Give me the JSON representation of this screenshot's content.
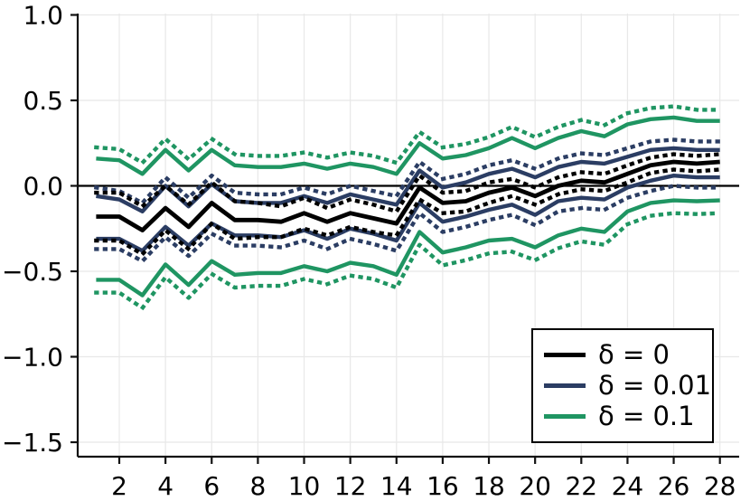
{
  "chart_data": {
    "type": "line",
    "title": "",
    "xlabel": "",
    "ylabel": "",
    "grid": true,
    "xlim": [
      0.2,
      28.8
    ],
    "ylim": [
      -1.59,
      1.01
    ],
    "zero_line": 0.0,
    "x": [
      1,
      2,
      3,
      4,
      5,
      6,
      7,
      8,
      9,
      10,
      11,
      12,
      13,
      14,
      15,
      16,
      17,
      18,
      19,
      20,
      21,
      22,
      23,
      24,
      25,
      26,
      27,
      28
    ],
    "xticks": {
      "values": [
        2,
        4,
        6,
        8,
        10,
        12,
        14,
        16,
        18,
        20,
        22,
        24,
        26,
        28
      ],
      "labels": [
        "2",
        "4",
        "6",
        "8",
        "10",
        "12",
        "14",
        "16",
        "18",
        "20",
        "22",
        "24",
        "26",
        "28"
      ]
    },
    "yticks": {
      "values": [
        1.0,
        0.5,
        0.0,
        -0.5,
        -1.0,
        -1.5
      ],
      "labels": [
        "1.0",
        "0.5",
        "0.0",
        "−0.5",
        "−1.0",
        "−1.5"
      ]
    },
    "colors": {
      "black": "#000000",
      "navy": "#2b3d63",
      "green": "#1f9562",
      "grid": "#e8e8e8",
      "spine": "#111111"
    },
    "legend": {
      "position": "bottom-right",
      "entries": [
        {
          "label": "δ = 0",
          "color": "#000000"
        },
        {
          "label": "δ = 0.01",
          "color": "#2b3d63"
        },
        {
          "label": "δ = 0.1",
          "color": "#1f9562"
        }
      ]
    },
    "series": [
      {
        "name": "delta-0.1-upper-ci-dotted",
        "color": "#1f9562",
        "style": "dotted",
        "width": 4.4,
        "values": [
          0.225,
          0.215,
          0.135,
          0.275,
          0.155,
          0.275,
          0.185,
          0.175,
          0.175,
          0.195,
          0.165,
          0.195,
          0.175,
          0.135,
          0.315,
          0.225,
          0.245,
          0.285,
          0.345,
          0.285,
          0.345,
          0.385,
          0.355,
          0.425,
          0.455,
          0.465,
          0.445,
          0.445
        ]
      },
      {
        "name": "delta-0.1-lower-ci-dotted",
        "color": "#1f9562",
        "style": "dotted",
        "width": 4.4,
        "values": [
          -0.625,
          -0.625,
          -0.715,
          -0.535,
          -0.655,
          -0.515,
          -0.595,
          -0.585,
          -0.585,
          -0.545,
          -0.575,
          -0.525,
          -0.545,
          -0.595,
          -0.345,
          -0.465,
          -0.435,
          -0.395,
          -0.385,
          -0.435,
          -0.365,
          -0.325,
          -0.345,
          -0.225,
          -0.175,
          -0.16,
          -0.165,
          -0.16
        ]
      },
      {
        "name": "delta-0.1-upper-bound",
        "color": "#1f9562",
        "style": "solid",
        "width": 4.4,
        "values": [
          0.16,
          0.15,
          0.07,
          0.21,
          0.09,
          0.21,
          0.12,
          0.11,
          0.11,
          0.13,
          0.1,
          0.13,
          0.11,
          0.07,
          0.25,
          0.16,
          0.18,
          0.22,
          0.28,
          0.22,
          0.28,
          0.32,
          0.29,
          0.36,
          0.39,
          0.4,
          0.38,
          0.38
        ]
      },
      {
        "name": "delta-0.1-lower-bound",
        "color": "#1f9562",
        "style": "solid",
        "width": 4.4,
        "values": [
          -0.55,
          -0.55,
          -0.64,
          -0.46,
          -0.58,
          -0.44,
          -0.52,
          -0.51,
          -0.51,
          -0.47,
          -0.5,
          -0.45,
          -0.47,
          -0.52,
          -0.27,
          -0.39,
          -0.36,
          -0.32,
          -0.31,
          -0.36,
          -0.29,
          -0.25,
          -0.27,
          -0.15,
          -0.1,
          -0.085,
          -0.09,
          -0.085
        ]
      },
      {
        "name": "delta-0.01-upper-ci-dotted",
        "color": "#2b3d63",
        "style": "dotted",
        "width": 4.4,
        "values": [
          -0.01,
          -0.03,
          -0.1,
          0.05,
          -0.07,
          0.06,
          -0.04,
          -0.05,
          -0.05,
          -0.01,
          -0.05,
          0.0,
          -0.03,
          -0.06,
          0.14,
          0.04,
          0.07,
          0.12,
          0.15,
          0.1,
          0.16,
          0.19,
          0.18,
          0.22,
          0.26,
          0.27,
          0.26,
          0.26
        ]
      },
      {
        "name": "delta-0.01-lower-ci-dotted",
        "color": "#2b3d63",
        "style": "dotted",
        "width": 4.4,
        "values": [
          -0.37,
          -0.37,
          -0.44,
          -0.3,
          -0.41,
          -0.28,
          -0.35,
          -0.35,
          -0.36,
          -0.32,
          -0.37,
          -0.31,
          -0.34,
          -0.38,
          -0.16,
          -0.27,
          -0.24,
          -0.2,
          -0.17,
          -0.23,
          -0.15,
          -0.13,
          -0.14,
          -0.07,
          -0.03,
          0.0,
          -0.01,
          -0.01
        ]
      },
      {
        "name": "delta-0.01-upper-bound",
        "color": "#2b3d63",
        "style": "solid",
        "width": 4.4,
        "values": [
          -0.06,
          -0.08,
          -0.15,
          0.0,
          -0.12,
          0.01,
          -0.09,
          -0.1,
          -0.1,
          -0.06,
          -0.1,
          -0.05,
          -0.08,
          -0.11,
          0.09,
          -0.01,
          0.02,
          0.07,
          0.1,
          0.05,
          0.11,
          0.14,
          0.13,
          0.17,
          0.21,
          0.22,
          0.21,
          0.21
        ]
      },
      {
        "name": "delta-0.01-lower-bound",
        "color": "#2b3d63",
        "style": "solid",
        "width": 4.4,
        "values": [
          -0.31,
          -0.31,
          -0.38,
          -0.24,
          -0.35,
          -0.22,
          -0.29,
          -0.29,
          -0.3,
          -0.26,
          -0.31,
          -0.25,
          -0.28,
          -0.32,
          -0.1,
          -0.21,
          -0.18,
          -0.14,
          -0.11,
          -0.17,
          -0.09,
          -0.07,
          -0.08,
          -0.01,
          0.03,
          0.06,
          0.05,
          0.05
        ]
      },
      {
        "name": "delta-0-upper-ci-dotted",
        "color": "#000000",
        "style": "dotted",
        "width": 4.4,
        "values": [
          -0.04,
          -0.04,
          -0.12,
          0.0,
          -0.11,
          0.02,
          -0.09,
          -0.1,
          -0.12,
          -0.07,
          -0.13,
          -0.08,
          -0.11,
          -0.15,
          0.06,
          -0.04,
          -0.03,
          0.02,
          0.04,
          -0.01,
          0.05,
          0.08,
          0.07,
          0.12,
          0.165,
          0.185,
          0.175,
          0.185
        ]
      },
      {
        "name": "delta-0-lower-ci-dotted",
        "color": "#000000",
        "style": "dotted",
        "width": 4.4,
        "values": [
          -0.32,
          -0.32,
          -0.4,
          -0.26,
          -0.37,
          -0.22,
          -0.31,
          -0.3,
          -0.3,
          -0.25,
          -0.29,
          -0.24,
          -0.27,
          -0.29,
          -0.08,
          -0.16,
          -0.15,
          -0.1,
          -0.06,
          -0.11,
          -0.05,
          -0.02,
          -0.03,
          0.02,
          0.075,
          0.095,
          0.085,
          0.095
        ]
      },
      {
        "name": "delta-0-estimate",
        "color": "#000000",
        "style": "solid",
        "width": 4.8,
        "values": [
          -0.18,
          -0.18,
          -0.26,
          -0.13,
          -0.24,
          -0.1,
          -0.2,
          -0.2,
          -0.21,
          -0.16,
          -0.21,
          -0.16,
          -0.19,
          -0.22,
          -0.01,
          -0.1,
          -0.09,
          -0.04,
          -0.01,
          -0.06,
          0.0,
          0.03,
          0.02,
          0.07,
          0.12,
          0.14,
          0.13,
          0.14
        ]
      }
    ]
  }
}
